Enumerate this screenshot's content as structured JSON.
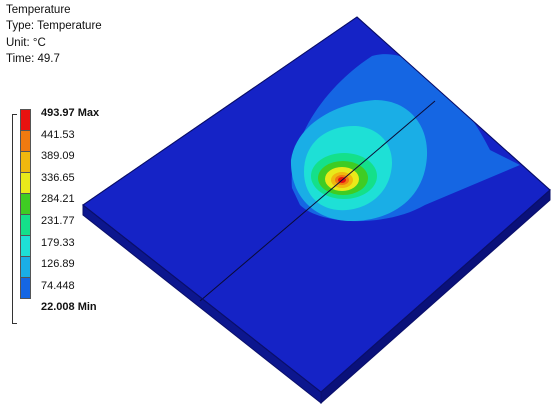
{
  "info": {
    "title": "Temperature",
    "type": "Type: Temperature",
    "unit": "Unit: °C",
    "time": "Time: 49.7"
  },
  "legend": {
    "labels": [
      "493.97 Max",
      "441.53",
      "389.09",
      "336.65",
      "284.21",
      "231.77",
      "179.33",
      "126.89",
      "74.448",
      "22.008 Min"
    ],
    "colors": [
      "#e8120f",
      "#f07a10",
      "#f0b80e",
      "#e9e91a",
      "#3fcc23",
      "#14e08a",
      "#1ee0d6",
      "#1aaee6",
      "#1566e3",
      "#1523c6"
    ]
  },
  "plot": {
    "background_color": "#1523c6",
    "edge_color": "#0a0f6a"
  }
}
